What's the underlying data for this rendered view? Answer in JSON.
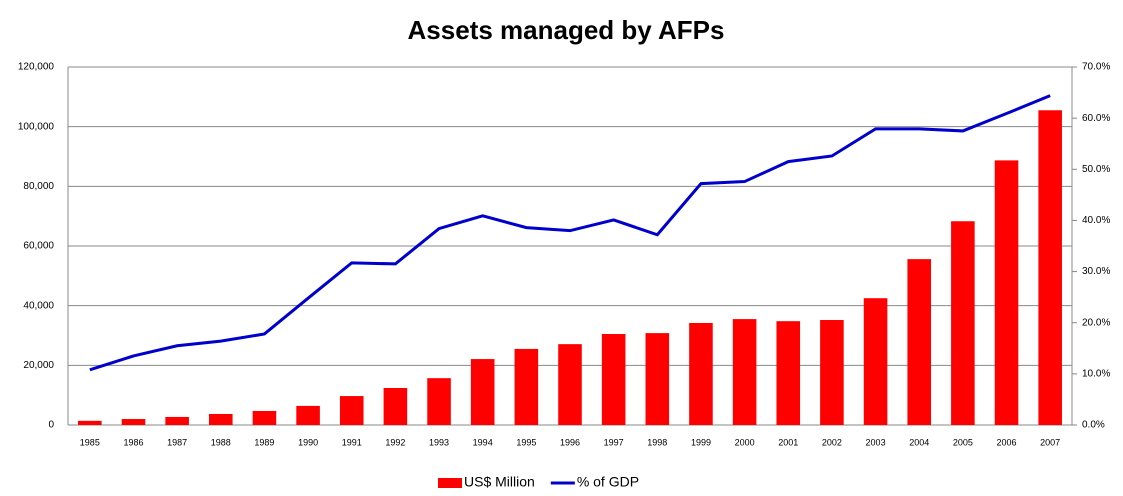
{
  "chart_data": {
    "type": "bar-line",
    "title": "Assets managed by AFPs",
    "categories": [
      "1985",
      "1986",
      "1987",
      "1988",
      "1989",
      "1990",
      "1991",
      "1992",
      "1993",
      "1994",
      "1995",
      "1996",
      "1997",
      "1998",
      "1999",
      "2000",
      "2001",
      "2002",
      "2003",
      "2004",
      "2005",
      "2006",
      "2007"
    ],
    "series": [
      {
        "name": "US$ Million",
        "type": "bar",
        "color": "#ff0000",
        "values": [
          1400,
          2000,
          2700,
          3700,
          4700,
          6400,
          9700,
          12400,
          15700,
          22100,
          25500,
          27100,
          30500,
          30800,
          34200,
          35500,
          34800,
          35200,
          42500,
          55600,
          68300,
          88700,
          105500
        ]
      },
      {
        "name": "% of GDP",
        "type": "line",
        "axis": "y2",
        "color": "#0000cc",
        "values": [
          10.8,
          13.5,
          15.5,
          16.4,
          17.8,
          24.8,
          31.7,
          31.5,
          38.4,
          40.9,
          38.6,
          38.0,
          40.1,
          37.2,
          47.2,
          47.6,
          51.5,
          52.6,
          57.9,
          57.9,
          57.5,
          60.9,
          64.4
        ]
      }
    ],
    "ylim": [
      0,
      120000
    ],
    "yticks": [
      0,
      {
        "value": 20000,
        "label": "20,000"
      },
      {
        "value": 40000,
        "label": "40,000"
      },
      {
        "value": 60000,
        "label": "60,000"
      },
      {
        "value": 80000,
        "label": "80,000"
      },
      {
        "value": 100000,
        "label": "100,000"
      },
      {
        "value": 120000,
        "label": "120,000"
      }
    ],
    "y2lim": [
      0,
      70
    ],
    "y2ticks": [
      {
        "value": 0,
        "label": "0.0%"
      },
      {
        "value": 10,
        "label": "10.0%"
      },
      {
        "value": 20,
        "label": "20.0%"
      },
      {
        "value": 30,
        "label": "30.0%"
      },
      {
        "value": 40,
        "label": "40.0%"
      },
      {
        "value": 50,
        "label": "50.0%"
      },
      {
        "value": 60,
        "label": "60.0%"
      },
      {
        "value": 70,
        "label": "70.0%"
      }
    ],
    "grid": true,
    "legend": "bottom"
  }
}
